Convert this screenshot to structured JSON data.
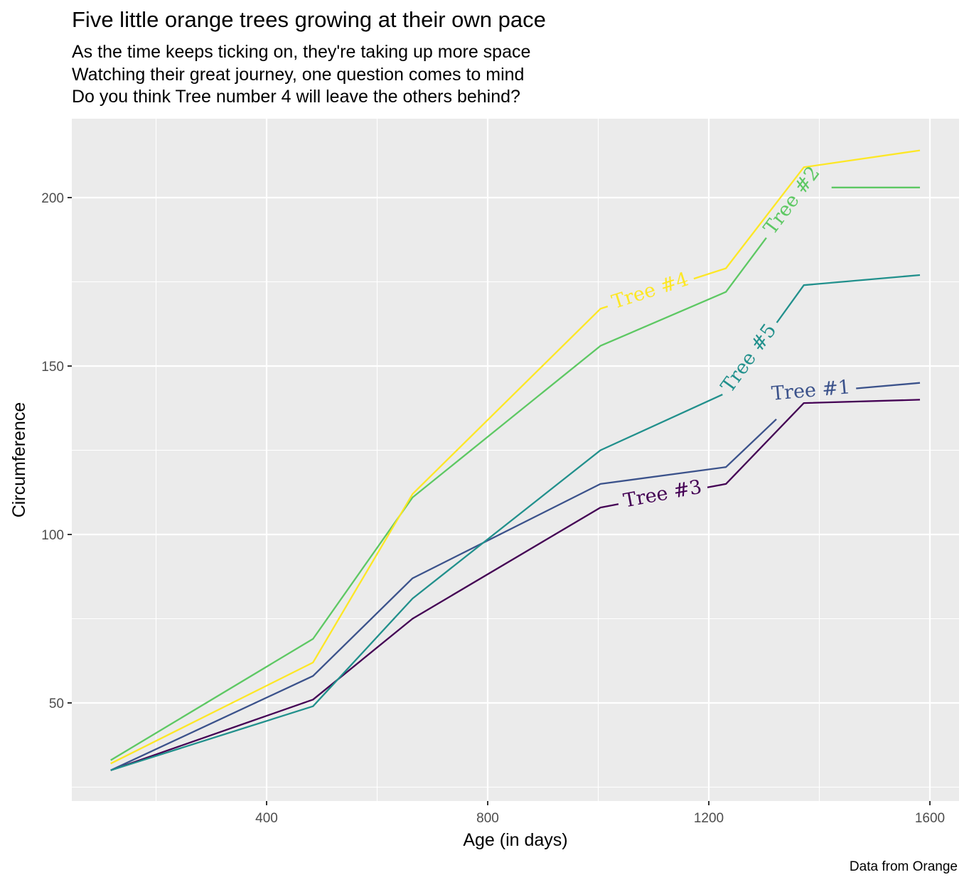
{
  "chart_data": {
    "type": "line",
    "title": "Five little orange trees growing at their own pace",
    "subtitle": [
      "As the time keeps ticking on, they're taking up more space",
      "Watching their great journey, one question comes to mind",
      "Do you think Tree number 4 will leave the others behind?"
    ],
    "xlabel": "Age (in days)",
    "ylabel": "Circumference",
    "caption": "Data from Orange",
    "x": [
      118,
      484,
      664,
      1004,
      1231,
      1372,
      1582
    ],
    "xlim": [
      40,
      1650
    ],
    "ylim": [
      20,
      222
    ],
    "xticks": [
      400,
      800,
      1200,
      1600
    ],
    "yticks": [
      50,
      100,
      150,
      200
    ],
    "x_minor_gridlines": [
      200,
      600,
      1000,
      1400
    ],
    "y_minor_gridlines": [
      25,
      75,
      125,
      175
    ],
    "grid": true,
    "legend": "none",
    "series": [
      {
        "name": "Tree #3",
        "label": "Tree #3",
        "color": "#440154",
        "values": [
          30,
          51,
          75,
          108,
          115,
          139,
          140
        ]
      },
      {
        "name": "Tree #1",
        "label": "Tree #1",
        "color": "#3B528B",
        "values": [
          30,
          58,
          87,
          115,
          120,
          142,
          145
        ]
      },
      {
        "name": "Tree #5",
        "label": "Tree #5",
        "color": "#21908C",
        "values": [
          30,
          49,
          81,
          125,
          142,
          174,
          177
        ]
      },
      {
        "name": "Tree #2",
        "label": "Tree #2",
        "color": "#5DC863",
        "values": [
          33,
          69,
          111,
          156,
          172,
          203,
          203
        ]
      },
      {
        "name": "Tree #4",
        "label": "Tree #4",
        "color": "#FDE725",
        "values": [
          32,
          62,
          112,
          167,
          179,
          209,
          214
        ]
      }
    ]
  }
}
